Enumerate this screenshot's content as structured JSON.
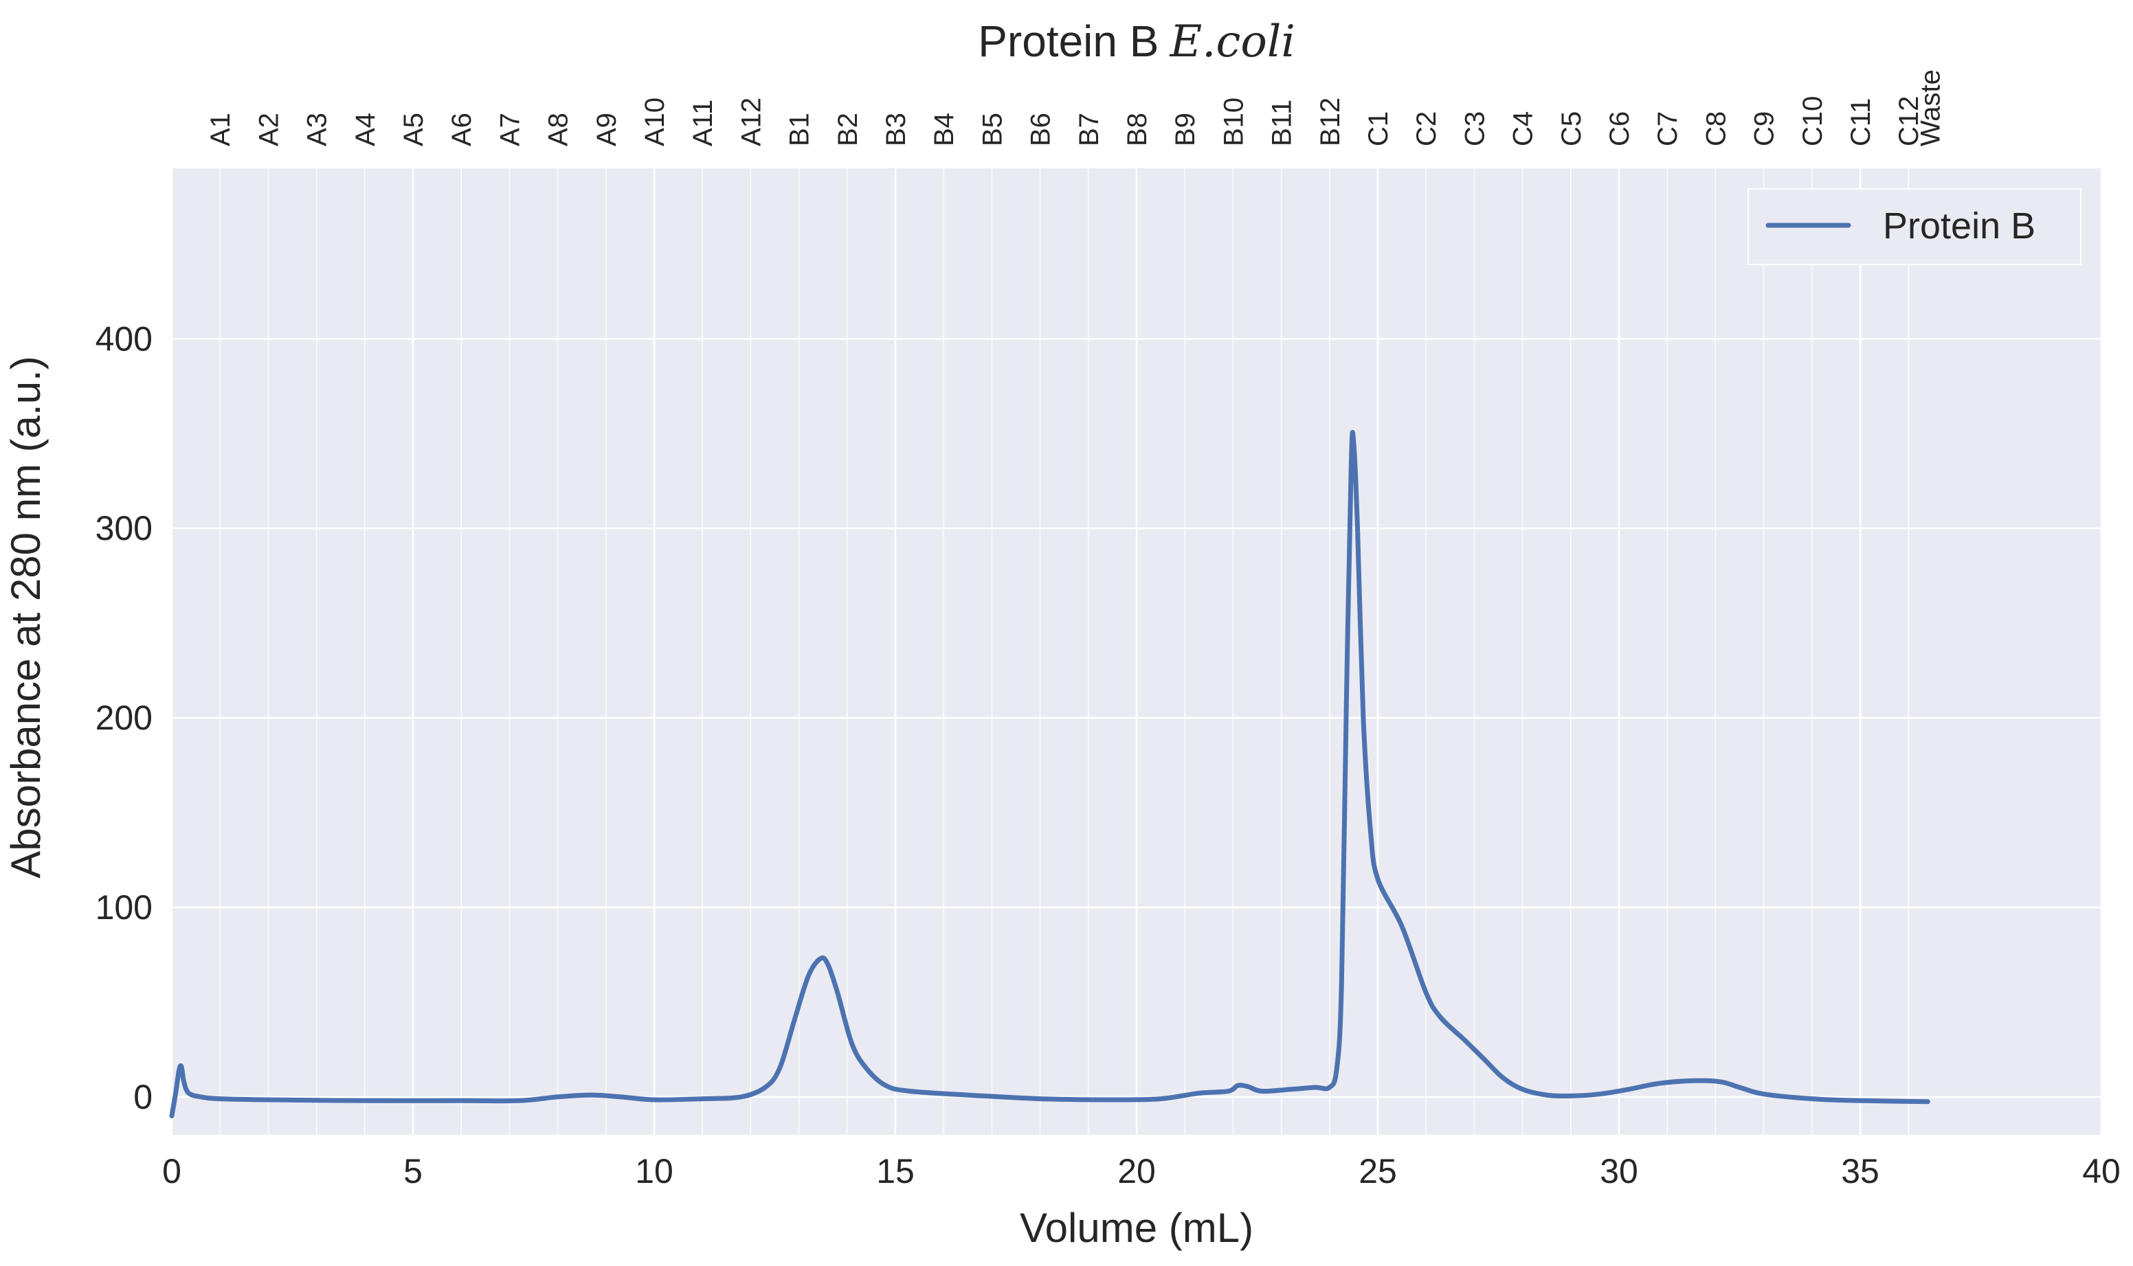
{
  "chart_data": {
    "type": "line",
    "title_main": "Protein B",
    "title_italic": "E.coli",
    "xlabel": "Volume (mL)",
    "ylabel": "Absorbance at 280 nm (a.u.)",
    "xlim": [
      0,
      40
    ],
    "ylim": [
      -20,
      490
    ],
    "x_ticks": [
      0,
      5,
      10,
      15,
      20,
      25,
      30,
      35,
      40
    ],
    "y_ticks": [
      0,
      100,
      200,
      300,
      400
    ],
    "grid": true,
    "legend_position": "top-right",
    "fractions": {
      "labels": [
        "A1",
        "A2",
        "A3",
        "A4",
        "A5",
        "A6",
        "A7",
        "A8",
        "A9",
        "A10",
        "A11",
        "A12",
        "B1",
        "B2",
        "B3",
        "B4",
        "B5",
        "B6",
        "B7",
        "B8",
        "B9",
        "B10",
        "B11",
        "B12",
        "C1",
        "C2",
        "C3",
        "C4",
        "C5",
        "C6",
        "C7",
        "C8",
        "C9",
        "C10",
        "C11",
        "C12",
        "Waste"
      ],
      "boundaries": [
        1,
        2,
        3,
        4,
        5,
        6,
        7,
        8,
        9,
        10,
        11,
        12,
        13,
        14,
        15,
        16,
        17,
        18,
        19,
        20,
        21,
        22,
        23,
        24,
        25,
        26,
        27,
        28,
        29,
        30,
        31,
        32,
        33,
        34,
        35,
        36
      ]
    },
    "series": [
      {
        "name": "Protein B",
        "color": "#4c72b0",
        "points": [
          [
            0,
            -10
          ],
          [
            0.08,
            2
          ],
          [
            0.15,
            14
          ],
          [
            0.2,
            16
          ],
          [
            0.25,
            8
          ],
          [
            0.35,
            2
          ],
          [
            0.6,
            0
          ],
          [
            1,
            -1
          ],
          [
            2,
            -1.5
          ],
          [
            4,
            -2
          ],
          [
            6,
            -2
          ],
          [
            7.2,
            -2
          ],
          [
            8,
            0
          ],
          [
            8.7,
            1
          ],
          [
            9.3,
            0
          ],
          [
            10,
            -1.5
          ],
          [
            11,
            -1
          ],
          [
            11.8,
            0
          ],
          [
            12.3,
            5
          ],
          [
            12.6,
            15
          ],
          [
            12.9,
            40
          ],
          [
            13.2,
            64
          ],
          [
            13.45,
            73
          ],
          [
            13.6,
            70
          ],
          [
            13.8,
            55
          ],
          [
            14.1,
            28
          ],
          [
            14.4,
            15
          ],
          [
            14.8,
            6
          ],
          [
            15.3,
            3
          ],
          [
            16.5,
            1
          ],
          [
            18,
            -1
          ],
          [
            19.5,
            -1.5
          ],
          [
            20.5,
            -1
          ],
          [
            21.3,
            2
          ],
          [
            21.9,
            3
          ],
          [
            22.1,
            6
          ],
          [
            22.3,
            5.5
          ],
          [
            22.6,
            3
          ],
          [
            23.2,
            4
          ],
          [
            23.7,
            5
          ],
          [
            24.0,
            5
          ],
          [
            24.15,
            15
          ],
          [
            24.25,
            60
          ],
          [
            24.35,
            210
          ],
          [
            24.45,
            335
          ],
          [
            24.5,
            345
          ],
          [
            24.58,
            300
          ],
          [
            24.7,
            200
          ],
          [
            24.85,
            140
          ],
          [
            25.0,
            115
          ],
          [
            25.5,
            90
          ],
          [
            26.0,
            55
          ],
          [
            26.3,
            42
          ],
          [
            26.8,
            30
          ],
          [
            27.2,
            20
          ],
          [
            27.6,
            10
          ],
          [
            28.0,
            4
          ],
          [
            28.5,
            1
          ],
          [
            29.0,
            0.5
          ],
          [
            29.6,
            1.5
          ],
          [
            30.2,
            4
          ],
          [
            30.8,
            7
          ],
          [
            31.5,
            8.5
          ],
          [
            32.1,
            8
          ],
          [
            32.5,
            5
          ],
          [
            33.0,
            1.5
          ],
          [
            34.0,
            -1
          ],
          [
            35.0,
            -2
          ],
          [
            36.4,
            -2.5
          ]
        ]
      }
    ]
  }
}
